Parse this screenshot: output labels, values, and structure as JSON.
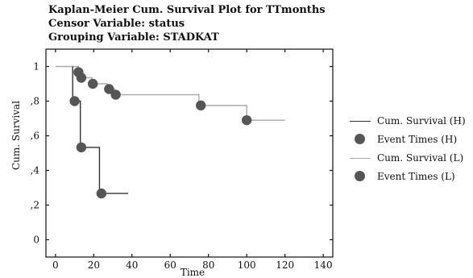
{
  "titles": {
    "line1": "Kaplan-Meier Cum. Survival Plot for TTmonths",
    "line2": "Censor Variable: status",
    "line3": "Grouping Variable: STADKAT"
  },
  "legend": [
    {
      "label": "Cum. Survival (H)",
      "kind": "line",
      "color": "#333333"
    },
    {
      "label": "Event Times (H)",
      "kind": "dot",
      "color": "#555555"
    },
    {
      "label": "Cum. Survival (L)",
      "kind": "line",
      "color": "#aaaaaa"
    },
    {
      "label": "Event Times (L)",
      "kind": "dot",
      "color": "#555555"
    }
  ],
  "chart_data": {
    "type": "line",
    "title": "Kaplan-Meier Cum. Survival Plot for TTmonths",
    "xlabel": "Time",
    "ylabel": "Cum. Survival",
    "xlim": [
      -5,
      145
    ],
    "ylim": [
      -0.1,
      1.1
    ],
    "x_ticks": [
      0,
      20,
      40,
      60,
      80,
      100,
      120,
      140
    ],
    "x_tick_labels": [
      "0",
      "20",
      "40",
      "60",
      "80",
      "100",
      "120",
      "140"
    ],
    "y_ticks": [
      0,
      0.2,
      0.4,
      0.6,
      0.8,
      1
    ],
    "y_tick_labels": [
      "0",
      ",2",
      ",4",
      ",6",
      ",8",
      "1"
    ],
    "grid": false,
    "legend_position": "right",
    "series": [
      {
        "name": "Cum. Survival (H)",
        "color": "#333333",
        "step": [
          [
            9,
            1
          ],
          [
            9,
            0.8
          ],
          [
            13,
            0.8
          ],
          [
            13,
            0.533
          ],
          [
            23,
            0.533
          ],
          [
            23,
            0.267
          ],
          [
            38,
            0.267
          ]
        ],
        "events": [
          [
            10,
            0.8
          ],
          [
            13.5,
            0.533
          ],
          [
            24,
            0.267
          ]
        ]
      },
      {
        "name": "Cum. Survival (L)",
        "color": "#aaaaaa",
        "step": [
          [
            0,
            1
          ],
          [
            12,
            1
          ],
          [
            12,
            0.967
          ],
          [
            13,
            0.967
          ],
          [
            13,
            0.935
          ],
          [
            19,
            0.935
          ],
          [
            19,
            0.9
          ],
          [
            27,
            0.9
          ],
          [
            27,
            0.87
          ],
          [
            31,
            0.87
          ],
          [
            31,
            0.837
          ],
          [
            75,
            0.837
          ],
          [
            75,
            0.775
          ],
          [
            100,
            0.775
          ],
          [
            100,
            0.69
          ],
          [
            120,
            0.69
          ]
        ],
        "events": [
          [
            12,
            0.967
          ],
          [
            13.5,
            0.935
          ],
          [
            19.5,
            0.9
          ],
          [
            28,
            0.87
          ],
          [
            31.5,
            0.837
          ],
          [
            76,
            0.775
          ],
          [
            100,
            0.69
          ]
        ]
      }
    ]
  }
}
